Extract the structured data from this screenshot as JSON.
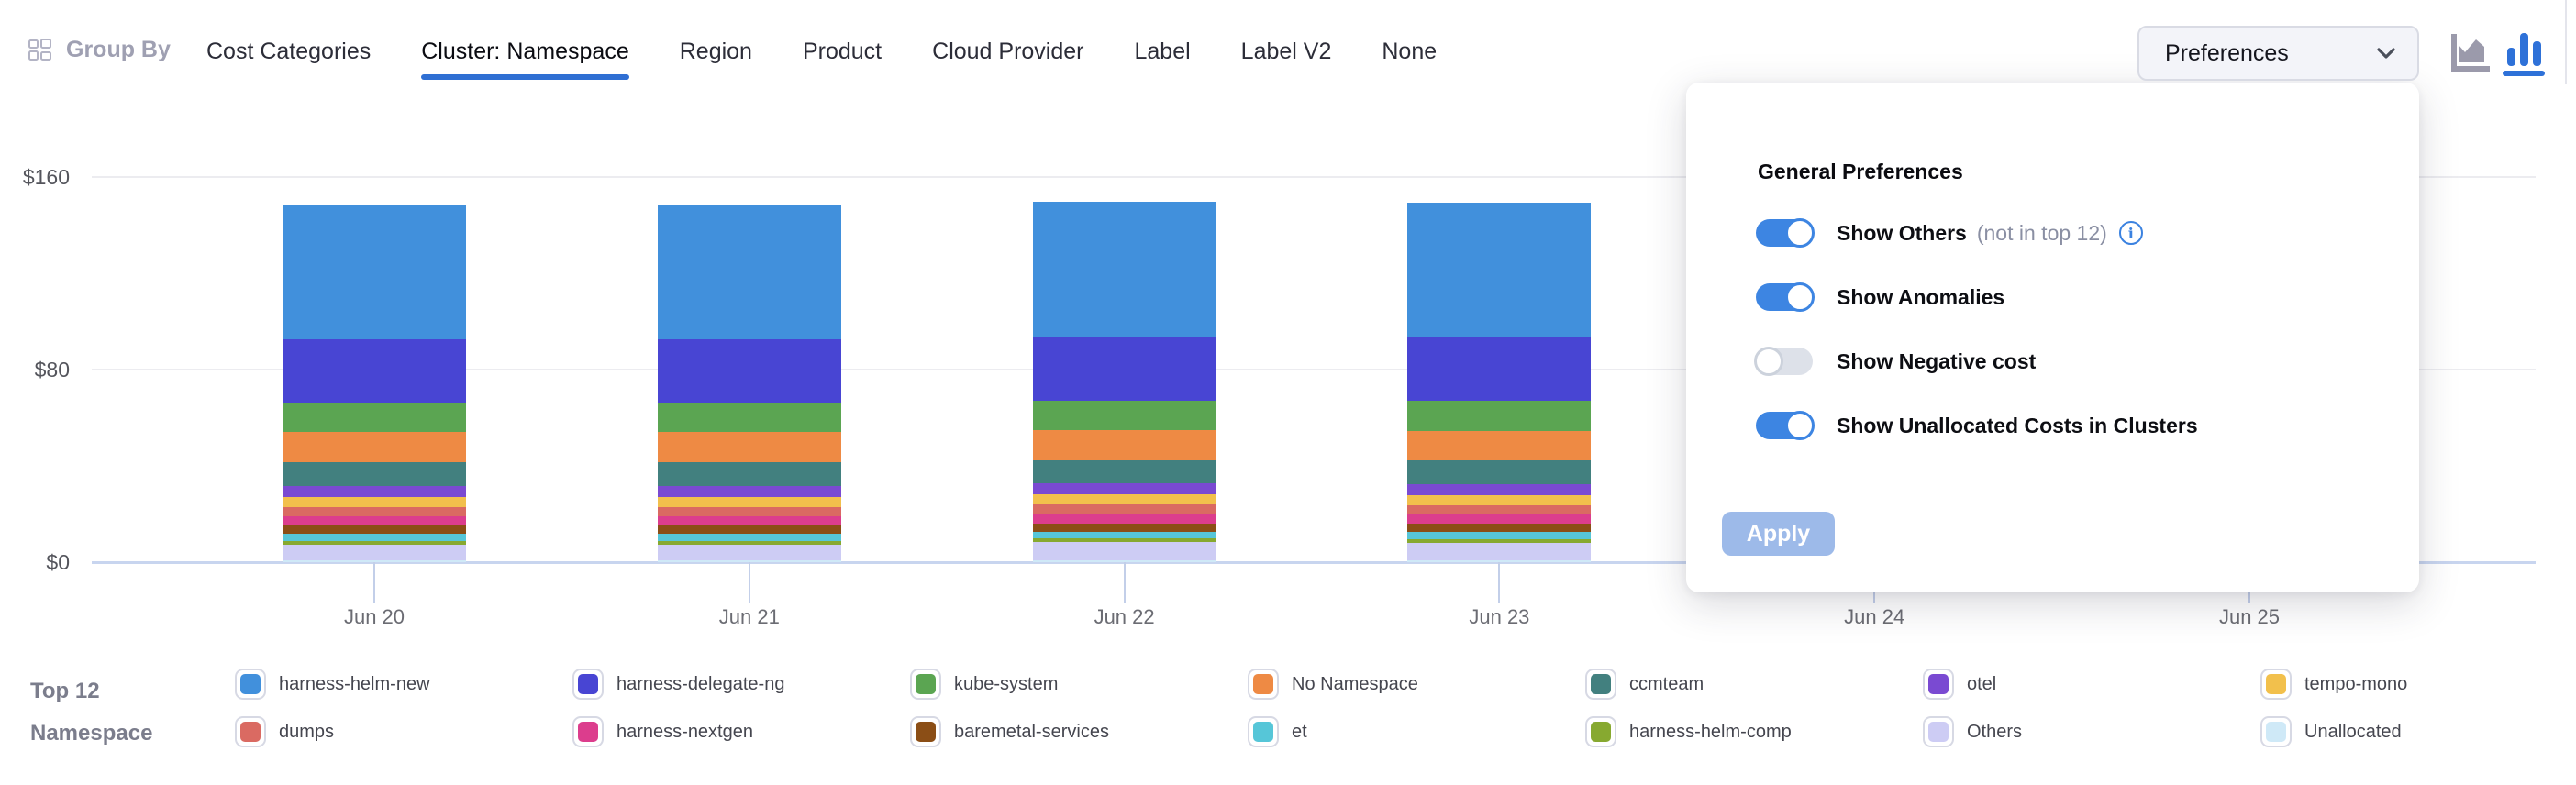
{
  "header": {
    "group_by_label": "Group By",
    "tabs": [
      {
        "label": "Cost Categories",
        "active": false
      },
      {
        "label": "Cluster: Namespace",
        "active": true
      },
      {
        "label": "Region",
        "active": false
      },
      {
        "label": "Product",
        "active": false
      },
      {
        "label": "Cloud Provider",
        "active": false
      },
      {
        "label": "Label",
        "active": false
      },
      {
        "label": "Label V2",
        "active": false
      },
      {
        "label": "None",
        "active": false
      }
    ],
    "preferences_button": "Preferences",
    "chart_type_icons": [
      "area-chart",
      "bar-chart"
    ],
    "active_chart_type": "bar-chart",
    "accent_color": "#2f6fd3"
  },
  "preferences_panel": {
    "title": "General Preferences",
    "toggles": [
      {
        "label": "Show Others",
        "suffix": "(not in top 12)",
        "has_info_icon": true,
        "on": true
      },
      {
        "label": "Show Anomalies",
        "suffix": "",
        "has_info_icon": false,
        "on": true
      },
      {
        "label": "Show Negative cost",
        "suffix": "",
        "has_info_icon": false,
        "on": false
      },
      {
        "label": "Show Unallocated Costs in Clusters",
        "suffix": "",
        "has_info_icon": false,
        "on": true
      }
    ],
    "apply_label": "Apply",
    "toggle_on_color": "#3d85e2",
    "toggle_off_color": "#dde1e9",
    "apply_button_color": "#9dbae9"
  },
  "chart_data": {
    "type": "bar",
    "stacked": true,
    "title": "",
    "xlabel": "",
    "ylabel": "",
    "x": [
      "Jun 20",
      "Jun 21",
      "Jun 22",
      "Jun 23",
      "Jun 24",
      "Jun 25"
    ],
    "ylim": [
      0,
      160
    ],
    "ytick_labels": [
      "$0",
      "$80",
      "$160"
    ],
    "grid": true,
    "legend_position": "bottom",
    "currency": "USD",
    "note": "Values in dollars per day; bars for Jun 24 and Jun 25 are occluded by the open Preferences popup (null = not visible)",
    "series": [
      {
        "name": "harness-helm-new",
        "color": "#4190DC",
        "values": [
          55.9,
          55.9,
          55.9,
          55.9,
          null,
          null
        ]
      },
      {
        "name": "harness-delegate-ng",
        "color": "#4845D3",
        "values": [
          26.3,
          26.3,
          26.3,
          26.3,
          null,
          null
        ]
      },
      {
        "name": "kube-system",
        "color": "#5BA552",
        "values": [
          12.3,
          12.3,
          12.3,
          12.3,
          null,
          null
        ]
      },
      {
        "name": "No Namespace",
        "color": "#EE8A44",
        "values": [
          12.4,
          12.4,
          12.4,
          12.4,
          null,
          null
        ]
      },
      {
        "name": "ccmteam",
        "color": "#42807F",
        "values": [
          9.8,
          9.8,
          9.8,
          9.8,
          null,
          null
        ]
      },
      {
        "name": "otel",
        "color": "#7A4AD2",
        "values": [
          4.5,
          4.5,
          4.5,
          4.5,
          null,
          null
        ]
      },
      {
        "name": "tempo-mono",
        "color": "#F2C04C",
        "values": [
          4.2,
          4.2,
          4.2,
          4.2,
          null,
          null
        ]
      },
      {
        "name": "dumps",
        "color": "#DA6A62",
        "values": [
          4.0,
          4.0,
          4.0,
          4.0,
          null,
          null
        ]
      },
      {
        "name": "harness-nextgen",
        "color": "#DC3D8D",
        "values": [
          3.8,
          3.8,
          3.8,
          3.8,
          null,
          null
        ]
      },
      {
        "name": "baremetal-services",
        "color": "#8B4E16",
        "values": [
          3.4,
          3.4,
          3.4,
          3.4,
          null,
          null
        ]
      },
      {
        "name": "et",
        "color": "#56C6D8",
        "values": [
          2.9,
          2.9,
          2.9,
          2.9,
          null,
          null
        ]
      },
      {
        "name": "harness-helm-comp",
        "color": "#87A930",
        "values": [
          1.6,
          1.6,
          1.2,
          1.6,
          null,
          null
        ]
      },
      {
        "name": "Others",
        "color": "#CDCCF4",
        "values": [
          6.3,
          6.3,
          7.6,
          7.0,
          null,
          null
        ]
      },
      {
        "name": "Unallocated",
        "color": "#CFE9F7",
        "values": [
          0.9,
          0.9,
          0.9,
          0.9,
          null,
          null
        ]
      }
    ]
  },
  "legend": {
    "title_line1": "Top 12",
    "title_line2": "Namespace",
    "rows": 2,
    "items": [
      {
        "label": "harness-helm-new",
        "color": "#4190DC"
      },
      {
        "label": "dumps",
        "color": "#DA6A62"
      },
      {
        "label": "harness-delegate-ng",
        "color": "#4845D3"
      },
      {
        "label": "harness-nextgen",
        "color": "#DC3D8D"
      },
      {
        "label": "kube-system",
        "color": "#5BA552"
      },
      {
        "label": "baremetal-services",
        "color": "#8B4E16"
      },
      {
        "label": "No Namespace",
        "color": "#EE8A44"
      },
      {
        "label": "et",
        "color": "#56C6D8"
      },
      {
        "label": "ccmteam",
        "color": "#42807F"
      },
      {
        "label": "harness-helm-comp",
        "color": "#87A930"
      },
      {
        "label": "otel",
        "color": "#7A4AD2"
      },
      {
        "label": "Others",
        "color": "#CDCCF4"
      },
      {
        "label": "tempo-mono",
        "color": "#F2C04C"
      },
      {
        "label": "Unallocated",
        "color": "#CFE9F7"
      }
    ]
  }
}
